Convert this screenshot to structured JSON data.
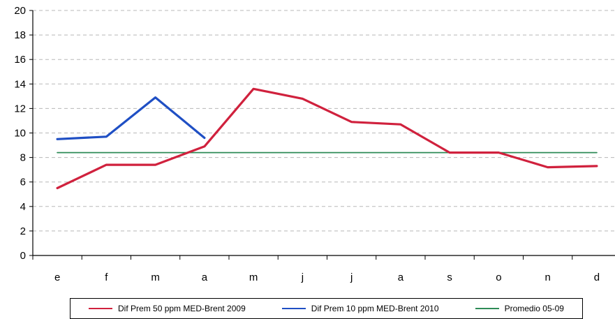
{
  "chart_data": {
    "type": "line",
    "categories": [
      "e",
      "f",
      "m",
      "a",
      "m",
      "j",
      "j",
      "a",
      "s",
      "o",
      "n",
      "d"
    ],
    "series": [
      {
        "name": "Dif Prem 50 ppm MED-Brent 2009",
        "color": "#d0213d",
        "values": [
          5.5,
          7.4,
          7.4,
          8.9,
          13.6,
          12.8,
          10.9,
          10.7,
          8.4,
          8.4,
          7.2,
          7.3
        ]
      },
      {
        "name": "Dif Prem 10 ppm MED-Brent 2010",
        "color": "#1f4fc4",
        "values": [
          9.5,
          9.7,
          12.9,
          9.6,
          null,
          null,
          null,
          null,
          null,
          null,
          null,
          null
        ]
      },
      {
        "name": "Promedio 05-09",
        "color": "#2e8b57",
        "values": [
          8.4,
          8.4,
          8.4,
          8.4,
          8.4,
          8.4,
          8.4,
          8.4,
          8.4,
          8.4,
          8.4,
          8.4
        ]
      }
    ],
    "ylim": [
      0,
      20
    ],
    "yticks": [
      0,
      2,
      4,
      6,
      8,
      10,
      12,
      14,
      16,
      18,
      20
    ],
    "grid": true,
    "legend": "bottom"
  }
}
